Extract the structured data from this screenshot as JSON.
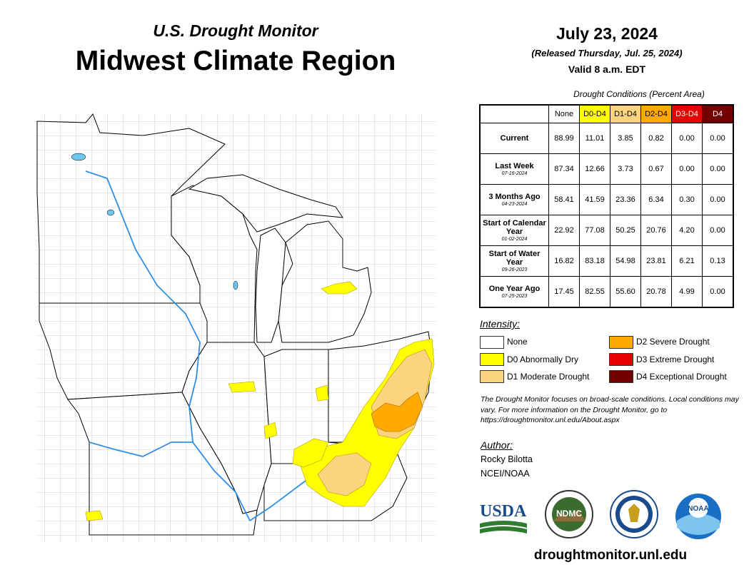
{
  "header": {
    "subtitle": "U.S. Drought Monitor",
    "title": "Midwest Climate Region",
    "date": "July 23, 2024",
    "released": "(Released Thursday, Jul. 25, 2024)",
    "valid": "Valid 8 a.m. EDT"
  },
  "table": {
    "title": "Drought Conditions (Percent Area)",
    "columns": [
      {
        "label": "None",
        "color": "#ffffff",
        "text_color": "#000000"
      },
      {
        "label": "D0-D4",
        "color": "#ffff00",
        "text_color": "#000000"
      },
      {
        "label": "D1-D4",
        "color": "#fcd37f",
        "text_color": "#000000"
      },
      {
        "label": "D2-D4",
        "color": "#ffaa00",
        "text_color": "#000000"
      },
      {
        "label": "D3-D4",
        "color": "#e60000",
        "text_color": "#ffffff"
      },
      {
        "label": "D4",
        "color": "#730000",
        "text_color": "#ffffff"
      }
    ],
    "rows": [
      {
        "label": "Current",
        "date": "",
        "values": [
          "88.99",
          "11.01",
          "3.85",
          "0.82",
          "0.00",
          "0.00"
        ]
      },
      {
        "label": "Last Week",
        "date": "07-16-2024",
        "values": [
          "87.34",
          "12.66",
          "3.73",
          "0.67",
          "0.00",
          "0.00"
        ]
      },
      {
        "label": "3 Months Ago",
        "date": "04-23-2024",
        "values": [
          "58.41",
          "41.59",
          "23.36",
          "6.34",
          "0.30",
          "0.00"
        ]
      },
      {
        "label": "Start of Calendar Year",
        "date": "01-02-2024",
        "values": [
          "22.92",
          "77.08",
          "50.25",
          "20.76",
          "4.20",
          "0.00"
        ]
      },
      {
        "label": "Start of Water Year",
        "date": "09-26-2023",
        "values": [
          "16.82",
          "83.18",
          "54.98",
          "23.81",
          "6.21",
          "0.13"
        ]
      },
      {
        "label": "One Year Ago",
        "date": "07-25-2023",
        "values": [
          "17.45",
          "82.55",
          "55.60",
          "20.78",
          "4.99",
          "0.00"
        ]
      }
    ]
  },
  "legend": {
    "title": "Intensity:",
    "items": [
      {
        "label": "None",
        "color": "#ffffff"
      },
      {
        "label": "D0 Abnormally Dry",
        "color": "#ffff00"
      },
      {
        "label": "D1 Moderate Drought",
        "color": "#fcd37f"
      },
      {
        "label": "D2 Severe Drought",
        "color": "#ffaa00"
      },
      {
        "label": "D3 Extreme Drought",
        "color": "#e60000"
      },
      {
        "label": "D4 Exceptional Drought",
        "color": "#730000"
      }
    ]
  },
  "note": "The Drought Monitor focuses on broad-scale conditions. Local conditions may vary. For more information on the Drought Monitor, go to https://droughtmonitor.unl.edu/About.aspx",
  "author": {
    "heading": "Author:",
    "name": "Rocky Bilotta",
    "org": "NCEI/NOAA"
  },
  "logos": {
    "usda": "USDA",
    "ndmc": "NDMC",
    "doc": "dept-of-commerce-seal",
    "noaa": "NOAA"
  },
  "url": "droughtmonitor.unl.edu"
}
